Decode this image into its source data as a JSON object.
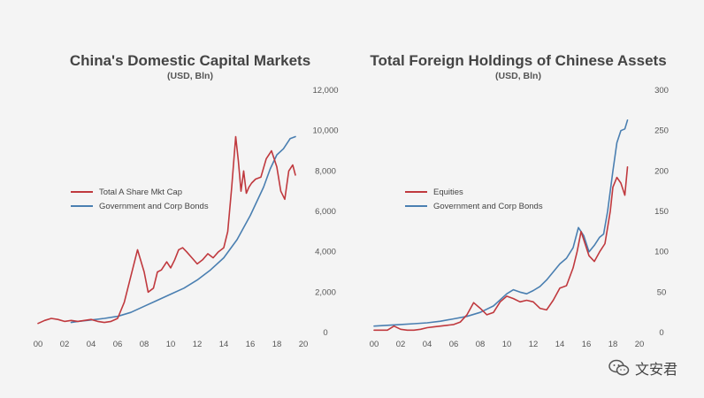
{
  "watermark": {
    "text": "文安君",
    "icon": "wechat-icon"
  },
  "colors": {
    "red": "#c0393e",
    "blue": "#4a7fb1"
  },
  "chart_data": [
    {
      "type": "line",
      "title": "China's Domestic Capital Markets",
      "subtitle": "(USD, Bln)",
      "x_tick_labels": [
        "00",
        "02",
        "04",
        "06",
        "08",
        "10",
        "12",
        "14",
        "16",
        "18",
        "20"
      ],
      "x_tick_values": [
        0,
        2,
        4,
        6,
        8,
        10,
        12,
        14,
        16,
        18,
        20
      ],
      "xlim": [
        0,
        20
      ],
      "y_tick_labels": [
        "0",
        "2,000",
        "4,000",
        "6,000",
        "8,000",
        "10,000",
        "12,000"
      ],
      "y_tick_values": [
        0,
        2000,
        4000,
        6000,
        8000,
        10000,
        12000
      ],
      "ylim": [
        0,
        12000
      ],
      "y_axis_side": "right",
      "legend_position": "middle-left",
      "series": [
        {
          "name": "Total A Share Mkt Cap",
          "color": "#c0393e",
          "x": [
            0,
            0.5,
            1,
            1.5,
            2,
            2.5,
            3,
            3.5,
            4,
            4.5,
            5,
            5.5,
            6,
            6.5,
            7,
            7.5,
            8,
            8.3,
            8.7,
            9,
            9.3,
            9.7,
            10,
            10.3,
            10.6,
            10.9,
            11.2,
            11.6,
            12,
            12.4,
            12.8,
            13.2,
            13.6,
            14,
            14.3,
            14.6,
            14.9,
            15.1,
            15.3,
            15.5,
            15.7,
            15.9,
            16.1,
            16.4,
            16.8,
            17.2,
            17.6,
            18,
            18.3,
            18.6,
            18.9,
            19.2,
            19.4
          ],
          "y": [
            450,
            600,
            700,
            650,
            550,
            600,
            550,
            600,
            650,
            550,
            500,
            550,
            700,
            1500,
            2800,
            4100,
            3000,
            2000,
            2200,
            3000,
            3100,
            3500,
            3200,
            3600,
            4100,
            4200,
            4000,
            3700,
            3400,
            3600,
            3900,
            3700,
            4000,
            4200,
            5000,
            7200,
            9700,
            8500,
            7000,
            8000,
            6900,
            7200,
            7400,
            7600,
            7700,
            8600,
            9000,
            8200,
            7000,
            6600,
            8000,
            8300,
            7800
          ]
        },
        {
          "name": "Government and Corp Bonds",
          "color": "#4a7fb1",
          "x": [
            2.5,
            3,
            4,
            5,
            6,
            7,
            8,
            9,
            10,
            11,
            12,
            13,
            14,
            15,
            16,
            17,
            17.5,
            18,
            18.5,
            19,
            19.4
          ],
          "y": [
            500,
            550,
            620,
            700,
            800,
            1000,
            1300,
            1600,
            1900,
            2200,
            2600,
            3100,
            3700,
            4600,
            5800,
            7200,
            8100,
            8800,
            9100,
            9600,
            9700
          ]
        }
      ]
    },
    {
      "type": "line",
      "title": "Total Foreign Holdings of Chinese Assets",
      "subtitle": "(USD, Bln)",
      "x_tick_labels": [
        "00",
        "02",
        "04",
        "06",
        "08",
        "10",
        "12",
        "14",
        "16",
        "18",
        "20"
      ],
      "x_tick_values": [
        0,
        2,
        4,
        6,
        8,
        10,
        12,
        14,
        16,
        18,
        20
      ],
      "xlim": [
        0,
        20
      ],
      "y_tick_labels": [
        "0",
        "50",
        "100",
        "150",
        "200",
        "250",
        "300"
      ],
      "y_tick_values": [
        0,
        50,
        100,
        150,
        200,
        250,
        300
      ],
      "ylim": [
        0,
        300
      ],
      "y_axis_side": "right",
      "legend_position": "middle-left",
      "series": [
        {
          "name": "Equities",
          "color": "#c0393e",
          "x": [
            0,
            0.5,
            1,
            1.5,
            2,
            2.5,
            3,
            3.5,
            4,
            4.5,
            5,
            5.5,
            6,
            6.5,
            7,
            7.5,
            8,
            8.5,
            9,
            9.5,
            10,
            10.5,
            11,
            11.5,
            12,
            12.5,
            13,
            13.5,
            14,
            14.5,
            15,
            15.3,
            15.6,
            15.9,
            16.2,
            16.6,
            17,
            17.4,
            17.8,
            18,
            18.3,
            18.6,
            18.9,
            19.1
          ],
          "y": [
            3,
            3,
            3,
            8,
            4,
            3,
            3,
            4,
            6,
            7,
            8,
            9,
            10,
            13,
            22,
            37,
            30,
            22,
            25,
            38,
            45,
            42,
            38,
            40,
            38,
            30,
            28,
            40,
            55,
            58,
            80,
            100,
            125,
            110,
            95,
            88,
            100,
            110,
            150,
            180,
            192,
            185,
            170,
            205
          ]
        },
        {
          "name": "Government and Corp Bonds",
          "color": "#4a7fb1",
          "x": [
            0,
            1,
            2,
            3,
            4,
            5,
            6,
            7,
            8,
            9,
            10,
            10.5,
            11,
            11.5,
            12,
            12.5,
            13,
            13.5,
            14,
            14.5,
            15,
            15.4,
            15.8,
            16.2,
            16.6,
            17,
            17.3,
            17.6,
            18,
            18.3,
            18.6,
            18.9,
            19.1
          ],
          "y": [
            8,
            9,
            10,
            11,
            12,
            14,
            17,
            20,
            25,
            33,
            48,
            53,
            50,
            48,
            52,
            57,
            65,
            75,
            85,
            92,
            105,
            130,
            120,
            100,
            108,
            118,
            122,
            150,
            200,
            235,
            250,
            252,
            263
          ]
        }
      ]
    }
  ]
}
